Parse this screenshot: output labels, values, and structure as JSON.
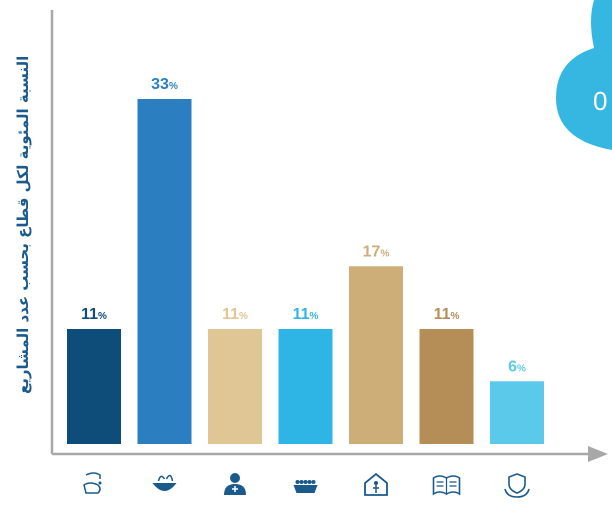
{
  "chart_data": {
    "type": "bar",
    "ylabel": "النسبة المئوية لكل قطاع بحسب عدد المشاريع",
    "xlabel": "",
    "ylim": [
      0,
      35
    ],
    "categories": [
      "water-hand-icon",
      "food-bowl-icon",
      "health-doctor-icon",
      "food-basket-icon",
      "shelter-house-icon",
      "education-book-icon",
      "protection-hands-icon"
    ],
    "values": [
      11,
      33,
      11,
      11,
      17,
      11,
      6
    ],
    "value_labels": [
      "11%",
      "33%",
      "11%",
      "11%",
      "17%",
      "11%",
      "6%"
    ],
    "colors": [
      "#0e4d7a",
      "#2b7fc1",
      "#e0c694",
      "#2fb5e5",
      "#cdad78",
      "#b48e56",
      "#5bc9ea"
    ],
    "label_colors": [
      "#0e4d7a",
      "#2b7fc1",
      "#e0c694",
      "#2fb5e5",
      "#cdad78",
      "#b48e56",
      "#5bc9ea"
    ],
    "grid": false,
    "legend": "none"
  },
  "badge": {
    "text": "0",
    "color": "#35b7e2"
  },
  "axis_color": "#a8a8a8",
  "icon_color": "#1a5a8c"
}
